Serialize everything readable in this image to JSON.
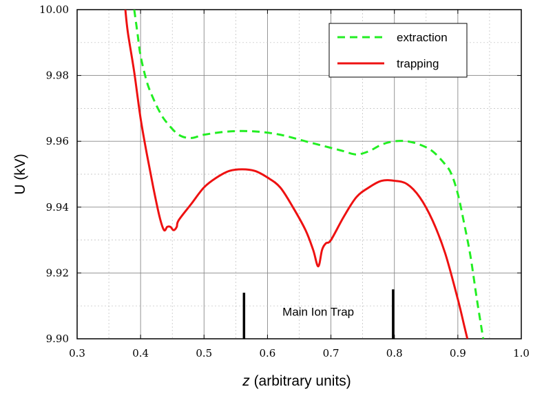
{
  "chart_data": {
    "type": "line",
    "xlabel_italic": "z",
    "xlabel_rest": " (arbitrary units)",
    "ylabel": "U (kV)",
    "xlim": [
      0.3,
      1.0
    ],
    "ylim": [
      9.9,
      10.0
    ],
    "x_ticks": [
      0.3,
      0.4,
      0.5,
      0.6,
      0.7,
      0.8,
      0.9,
      1.0
    ],
    "x_tick_labels": [
      "0.3",
      "0.4",
      "0.5",
      "0.6",
      "0.7",
      "0.8",
      "0.9",
      "1.0"
    ],
    "y_ticks": [
      9.9,
      9.92,
      9.94,
      9.96,
      9.98,
      10.0
    ],
    "y_tick_labels": [
      "9.90",
      "9.92",
      "9.94",
      "9.96",
      "9.98",
      "10.00"
    ],
    "grid": true,
    "legend_position": "top-right",
    "series": [
      {
        "name": "extraction",
        "color": "#22ee22",
        "dash": "dashed",
        "x": [
          0.39,
          0.395,
          0.4,
          0.41,
          0.42,
          0.43,
          0.44,
          0.46,
          0.48,
          0.5,
          0.54,
          0.58,
          0.62,
          0.66,
          0.7,
          0.72,
          0.74,
          0.76,
          0.78,
          0.8,
          0.82,
          0.84,
          0.86,
          0.88,
          0.89,
          0.9,
          0.91,
          0.92,
          0.93,
          0.94
        ],
        "y": [
          10.0,
          9.993,
          9.986,
          9.978,
          9.973,
          9.969,
          9.966,
          9.962,
          9.961,
          9.962,
          9.963,
          9.963,
          9.962,
          9.96,
          9.958,
          9.957,
          9.956,
          9.957,
          9.959,
          9.96,
          9.96,
          9.959,
          9.957,
          9.953,
          9.95,
          9.944,
          9.935,
          9.925,
          9.912,
          9.9
        ]
      },
      {
        "name": "trapping",
        "color": "#ee1111",
        "dash": "solid",
        "x": [
          0.376,
          0.38,
          0.39,
          0.4,
          0.41,
          0.42,
          0.43,
          0.437,
          0.442,
          0.447,
          0.452,
          0.457,
          0.46,
          0.48,
          0.5,
          0.52,
          0.54,
          0.56,
          0.58,
          0.6,
          0.62,
          0.64,
          0.66,
          0.672,
          0.68,
          0.686,
          0.692,
          0.7,
          0.72,
          0.74,
          0.76,
          0.78,
          0.8,
          0.82,
          0.84,
          0.86,
          0.88,
          0.9,
          0.91,
          0.915
        ],
        "y": [
          10.0,
          9.993,
          9.981,
          9.967,
          9.956,
          9.946,
          9.937,
          9.933,
          9.934,
          9.934,
          9.933,
          9.934,
          9.936,
          9.941,
          9.946,
          9.949,
          9.951,
          9.9515,
          9.951,
          9.949,
          9.946,
          9.94,
          9.933,
          9.927,
          9.922,
          9.927,
          9.929,
          9.93,
          9.937,
          9.943,
          9.946,
          9.948,
          9.948,
          9.947,
          9.943,
          9.936,
          9.926,
          9.912,
          9.904,
          9.9
        ]
      }
    ],
    "markers": [
      {
        "x": 0.563,
        "y_top": 9.914
      },
      {
        "x": 0.798,
        "y_top": 9.915
      }
    ],
    "annotation": {
      "text": "Main Ion Trap",
      "x": 0.68,
      "y": 9.907
    }
  }
}
